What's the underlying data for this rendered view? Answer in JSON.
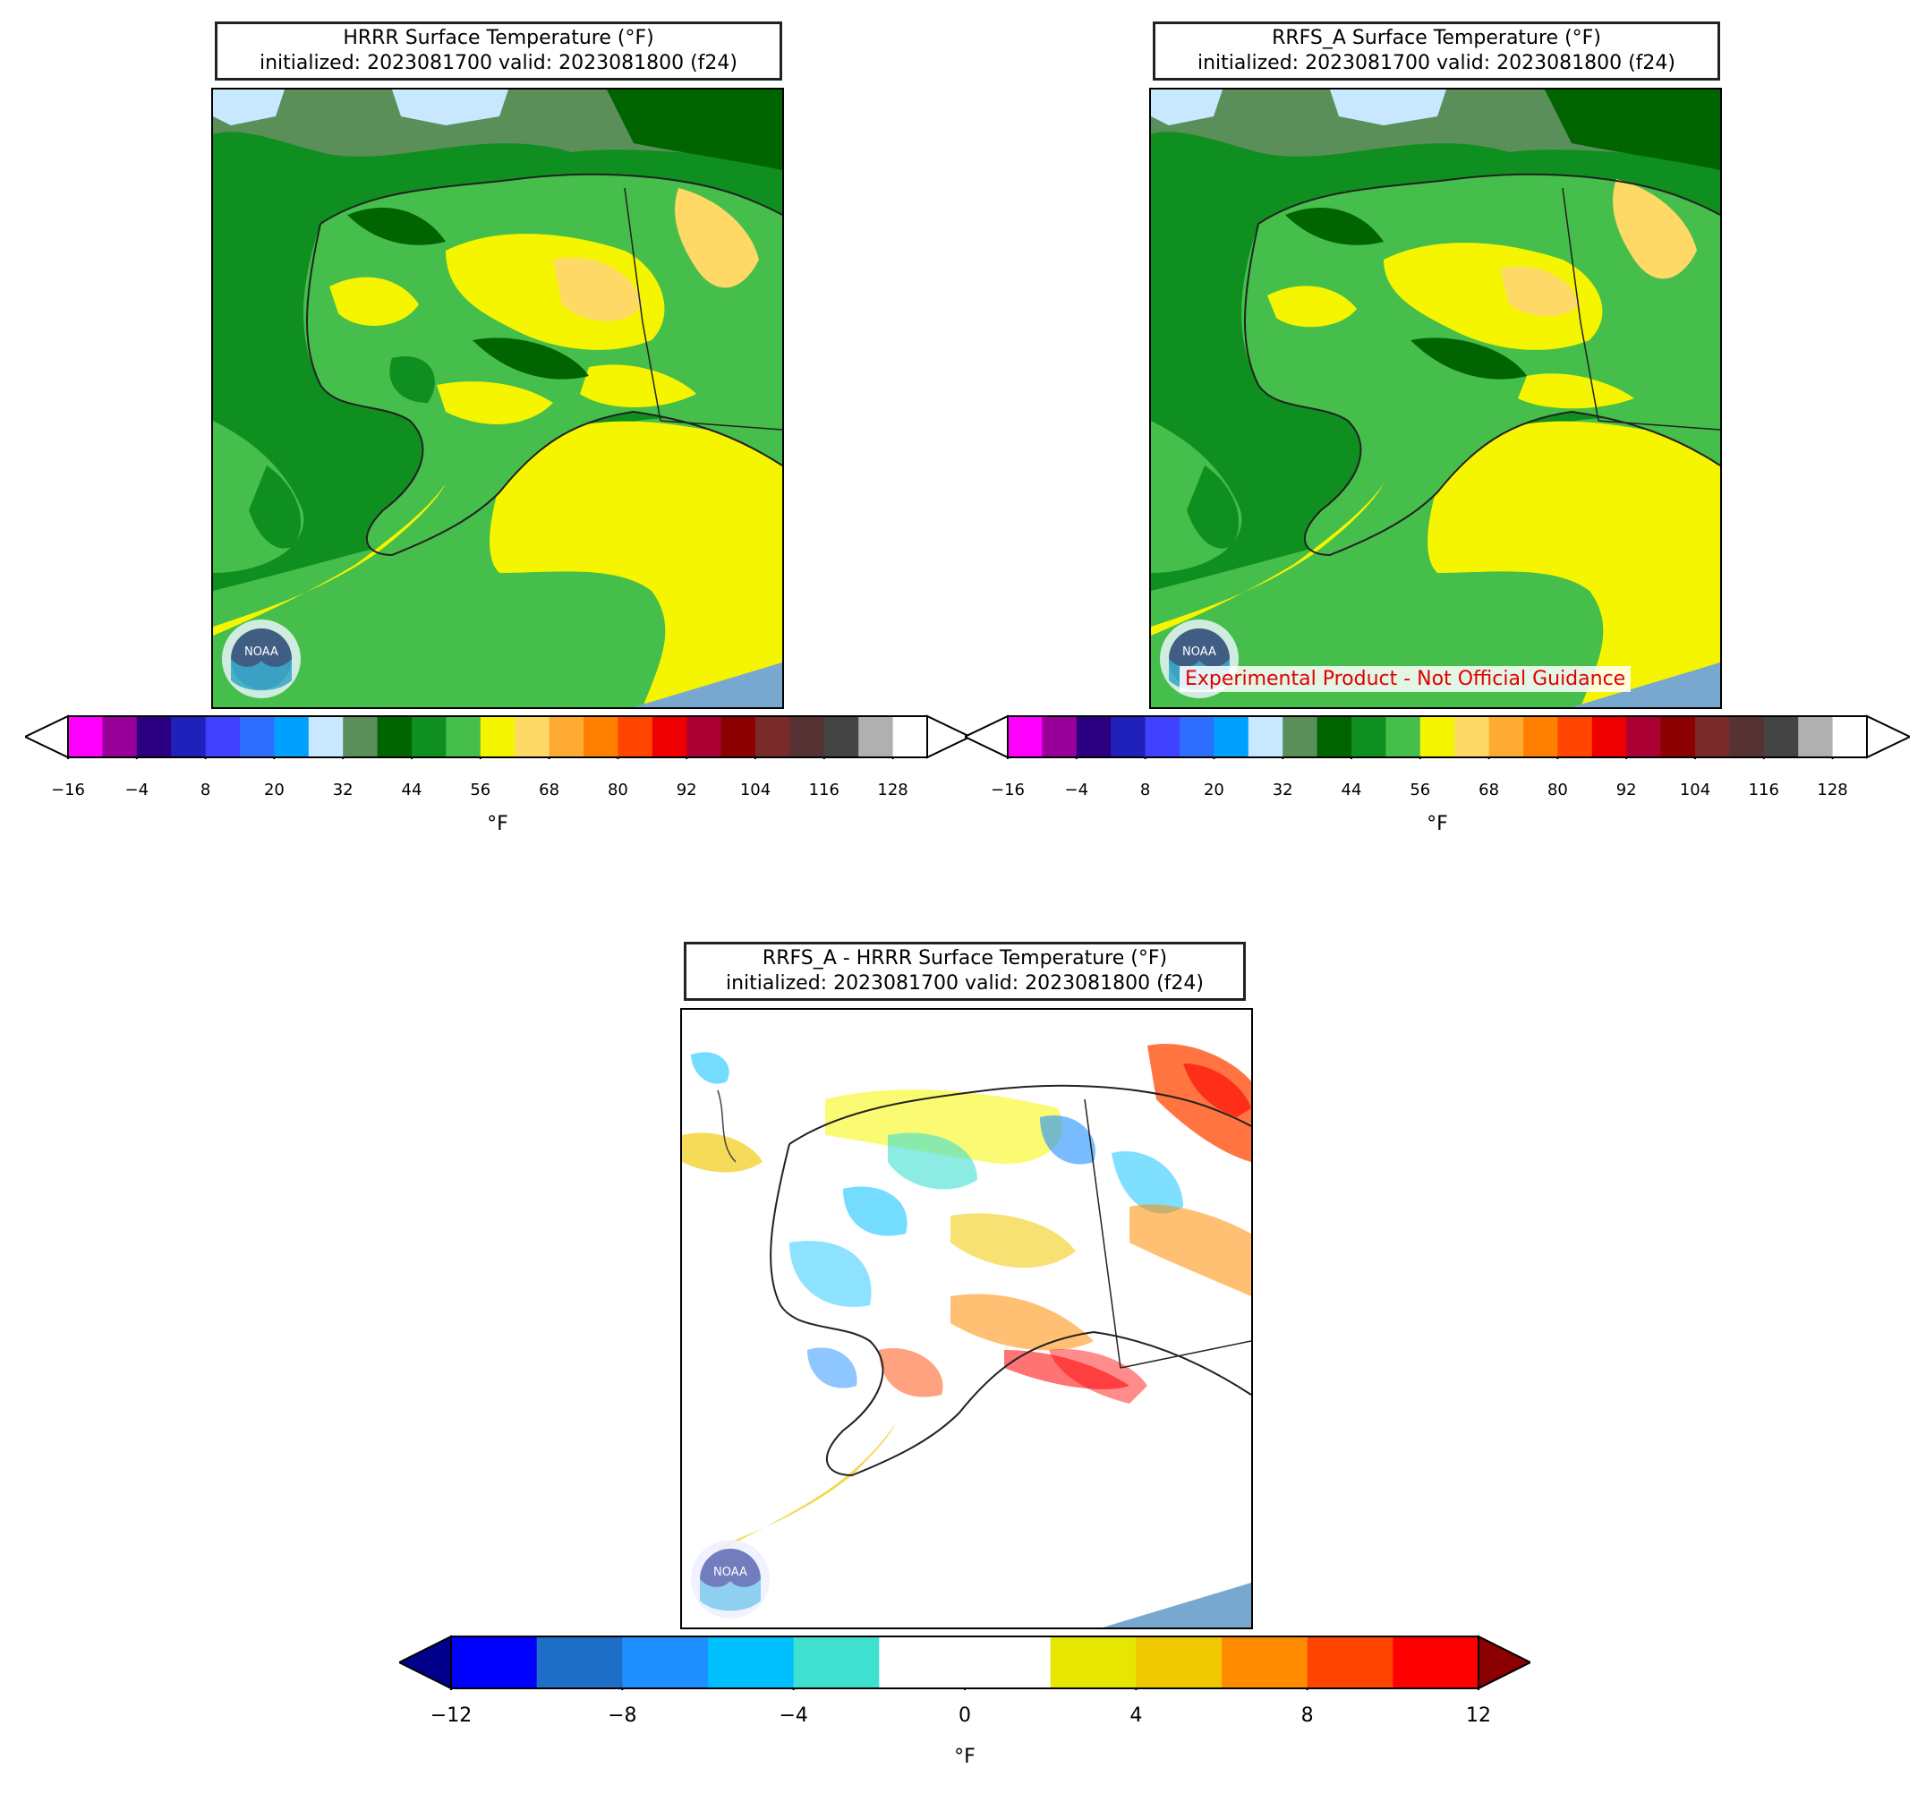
{
  "panels": [
    {
      "id": "hrrr",
      "title_line1": "HRRR Surface Temperature (°F)",
      "title_line2": "initialized: 2023081700 valid: 2023081800 (f24)"
    },
    {
      "id": "rrfs",
      "title_line1": "RRFS_A Surface Temperature (°F)",
      "title_line2": "initialized: 2023081700 valid: 2023081800 (f24)",
      "watermark": "Experimental Product - Not Official Guidance"
    },
    {
      "id": "diff",
      "title_line1": "RRFS_A - HRRR Surface Temperature (°F)",
      "title_line2": "initialized: 2023081700 valid: 2023081800 (f24)"
    }
  ],
  "temp_colorbar": {
    "unit": "°F",
    "ticks": [
      "−16",
      "−4",
      "8",
      "20",
      "32",
      "44",
      "56",
      "68",
      "80",
      "92",
      "104",
      "116",
      "128"
    ],
    "colors": [
      "#ff00ff",
      "#990099",
      "#2a0080",
      "#2020bb",
      "#4040ff",
      "#2e6eff",
      "#00a0ff",
      "#c8e8ff",
      "#5a8f5a",
      "#006400",
      "#0f8f1f",
      "#46be4b",
      "#f5f500",
      "#ffd966",
      "#ffaa33",
      "#ff7f00",
      "#ff4500",
      "#ee0000",
      "#aa0033",
      "#8b0000",
      "#7b2a2a",
      "#553333",
      "#444444",
      "#b0b0b0",
      "#ffffff"
    ],
    "min_color": "#ffffff",
    "max_color": "#ffffff"
  },
  "diff_colorbar": {
    "unit": "°F",
    "ticks": [
      "−12",
      "−8",
      "−4",
      "0",
      "4",
      "8",
      "12"
    ],
    "colors": [
      "#0000ff",
      "#1e6ec8",
      "#1e90ff",
      "#00bfff",
      "#40e0d0",
      "#ffffff",
      "#ffffff",
      "#e6e600",
      "#f0c800",
      "#ff8c00",
      "#ff4500",
      "#ff0000"
    ],
    "min_color": "#00008b",
    "max_color": "#8b0000"
  },
  "logo": {
    "icon": "noaa-logo-icon",
    "text": "NOAA"
  }
}
